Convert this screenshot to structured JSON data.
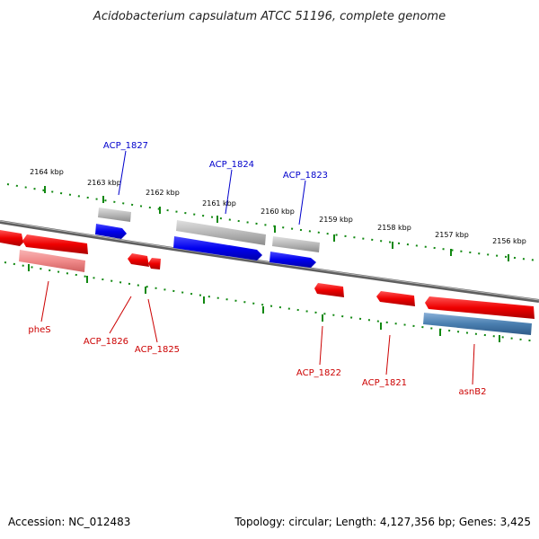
{
  "title": "Acidobacterium capsulatum ATCC 51196, complete genome",
  "footer": {
    "accession": "Accession: NC_012483",
    "summary": "Topology: circular; Length: 4,127,356 bp; Genes: 3,425"
  },
  "scale_ticks": [
    "2164 kbp",
    "2163 kbp",
    "2162 kbp",
    "2161 kbp",
    "2160 kbp",
    "2159 kbp",
    "2158 kbp",
    "2157 kbp",
    "2156 kbp"
  ],
  "genes": [
    {
      "id": "ACP_1827",
      "label": "ACP_1827",
      "strand": "forward"
    },
    {
      "id": "ACP_1824",
      "label": "ACP_1824",
      "strand": "forward"
    },
    {
      "id": "ACP_1823",
      "label": "ACP_1823",
      "strand": "forward"
    },
    {
      "id": "pheS",
      "label": "pheS",
      "strand": "reverse"
    },
    {
      "id": "ACP_1826",
      "label": "ACP_1826",
      "strand": "reverse"
    },
    {
      "id": "ACP_1825",
      "label": "ACP_1825",
      "strand": "reverse"
    },
    {
      "id": "ACP_1822",
      "label": "ACP_1822",
      "strand": "reverse"
    },
    {
      "id": "ACP_1821",
      "label": "ACP_1821",
      "strand": "reverse"
    },
    {
      "id": "asnB2",
      "label": "asnB2",
      "strand": "reverse"
    }
  ],
  "colors": {
    "forward_cds": "#0000ee",
    "reverse_cds": "#ee0000",
    "forward_light": "#b8b8b8",
    "reverse_light": "#f08a8a",
    "reverse_steel": "#4a7fb0",
    "backbone": "#7a7a7a",
    "ticks": "#118811",
    "forward_label": "#0000cc",
    "reverse_label": "#cc0000"
  }
}
